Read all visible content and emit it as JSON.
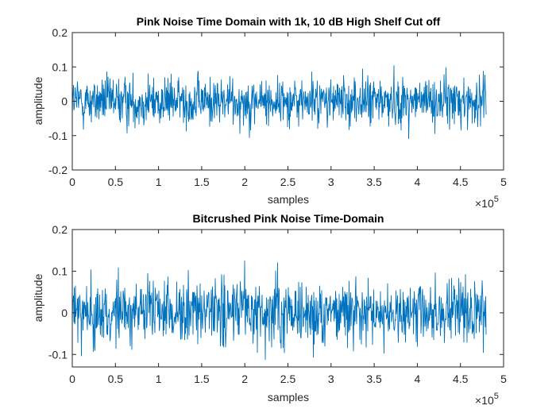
{
  "chart_data": [
    {
      "type": "line",
      "title": "Pink Noise Time Domain with 1k, 10 dB High Shelf Cut off",
      "xlabel": "samples",
      "ylabel": "amplitude",
      "x_exponent_label": "×10",
      "x_exponent": "5",
      "xlim": [
        0,
        5
      ],
      "ylim": [
        -0.2,
        0.2
      ],
      "xticks": [
        0,
        0.5,
        1,
        1.5,
        2,
        2.5,
        3,
        3.5,
        4,
        4.5,
        5
      ],
      "xtick_labels": [
        "0",
        "0.5",
        "1",
        "1.5",
        "2",
        "2.5",
        "3",
        "3.5",
        "4",
        "4.5",
        "5"
      ],
      "yticks": [
        -0.2,
        -0.1,
        0,
        0.1,
        0.2
      ],
      "ytick_labels": [
        "-0.2",
        "-0.1",
        "0",
        "0.1",
        "0.2"
      ],
      "grid": false,
      "color": "#0072BD",
      "signal": {
        "x_start": 0,
        "x_end": 4.8,
        "typical_amplitude": 0.05,
        "peak_amplitude": 0.125
      }
    },
    {
      "type": "line",
      "title": "Bitcrushed Pink Noise Time-Domain",
      "xlabel": "samples",
      "ylabel": "amplitude",
      "x_exponent_label": "×10",
      "x_exponent": "5",
      "xlim": [
        0,
        5
      ],
      "ylim": [
        -0.13,
        0.2
      ],
      "xticks": [
        0,
        0.5,
        1,
        1.5,
        2,
        2.5,
        3,
        3.5,
        4,
        4.5,
        5
      ],
      "xtick_labels": [
        "0",
        "0.5",
        "1",
        "1.5",
        "2",
        "2.5",
        "3",
        "3.5",
        "4",
        "4.5",
        "5"
      ],
      "yticks": [
        -0.1,
        0,
        0.1,
        0.2
      ],
      "ytick_labels": [
        "-0.1",
        "0",
        "0.1",
        "0.2"
      ],
      "grid": false,
      "color": "#0072BD",
      "signal": {
        "x_start": 0,
        "x_end": 4.8,
        "typical_amplitude": 0.055,
        "peak_amplitude": 0.14
      }
    }
  ]
}
